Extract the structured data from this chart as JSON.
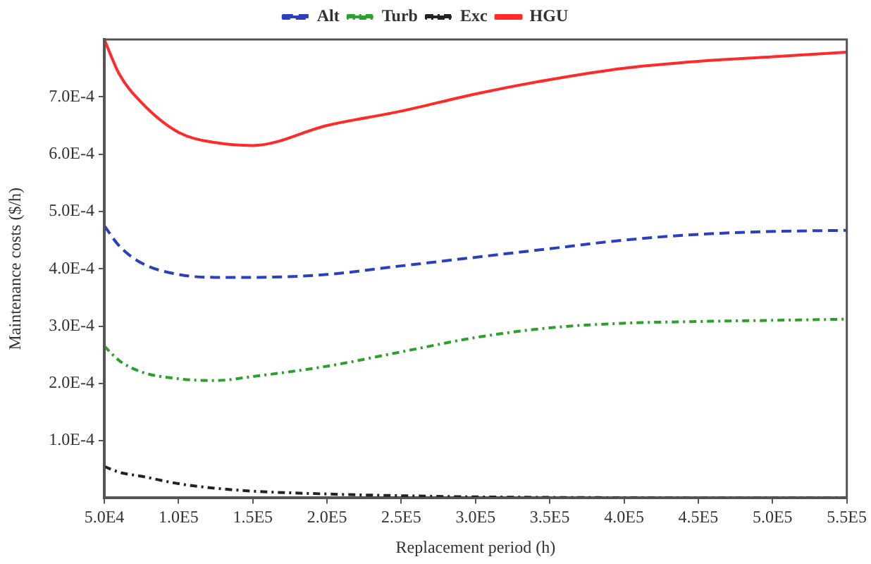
{
  "chart_data": {
    "type": "line",
    "xlabel": "Replacement period (h)",
    "ylabel": "Maintenance costs ($/h)",
    "x": [
      50000,
      60000,
      75000,
      100000,
      125000,
      150000,
      200000,
      250000,
      300000,
      350000,
      400000,
      450000,
      500000,
      550000
    ],
    "series": [
      {
        "name": "Alt",
        "color": "#2b3fbf",
        "line_style": "dashed",
        "values": [
          0.000475,
          0.00044,
          0.00041,
          0.00039,
          0.000385,
          0.000385,
          0.00039,
          0.000405,
          0.00042,
          0.000435,
          0.00045,
          0.00046,
          0.000465,
          0.000467
        ]
      },
      {
        "name": "Turb",
        "color": "#2ca02c",
        "line_style": "dotted",
        "values": [
          0.000265,
          0.00024,
          0.00022,
          0.000208,
          0.000205,
          0.000212,
          0.00023,
          0.000255,
          0.00028,
          0.000297,
          0.000305,
          0.000308,
          0.00031,
          0.000312
        ]
      },
      {
        "name": "Exc",
        "color": "#222222",
        "line_style": "dotted",
        "values": [
          5.5e-05,
          4.5e-05,
          3.8e-05,
          2.5e-05,
          1.7e-05,
          1.2e-05,
          7e-06,
          4e-06,
          2e-06,
          1e-06,
          5e-07,
          0,
          0,
          0
        ]
      },
      {
        "name": "HGU",
        "color": "#ff2a2a",
        "line_style": "solid",
        "values": [
          0.0008,
          0.00074,
          0.00069,
          0.000638,
          0.00062,
          0.000615,
          0.00065,
          0.000675,
          0.000705,
          0.00073,
          0.00075,
          0.000762,
          0.00077,
          0.000778
        ]
      }
    ],
    "xlim": [
      50000,
      550000
    ],
    "xticks": [
      {
        "value": 50000,
        "label": "5.0E4"
      },
      {
        "value": 100000,
        "label": "1.0E5"
      },
      {
        "value": 150000,
        "label": "1.5E5"
      },
      {
        "value": 200000,
        "label": "2.0E5"
      },
      {
        "value": 250000,
        "label": "2.5E5"
      },
      {
        "value": 300000,
        "label": "3.0E5"
      },
      {
        "value": 350000,
        "label": "3.5E5"
      },
      {
        "value": 400000,
        "label": "4.0E5"
      },
      {
        "value": 450000,
        "label": "4.5E5"
      },
      {
        "value": 500000,
        "label": "5.0E5"
      },
      {
        "value": 550000,
        "label": "5.5E5"
      }
    ],
    "ylim": [
      0,
      0.0008
    ],
    "yticks": [
      {
        "value": 0.0001,
        "label": "1.0E-4"
      },
      {
        "value": 0.0002,
        "label": "2.0E-4"
      },
      {
        "value": 0.0003,
        "label": "3.0E-4"
      },
      {
        "value": 0.0004,
        "label": "4.0E-4"
      },
      {
        "value": 0.0005,
        "label": "5.0E-4"
      },
      {
        "value": 0.0006,
        "label": "6.0E-4"
      },
      {
        "value": 0.0007,
        "label": "7.0E-4"
      }
    ],
    "grid": false,
    "legend": "top"
  }
}
